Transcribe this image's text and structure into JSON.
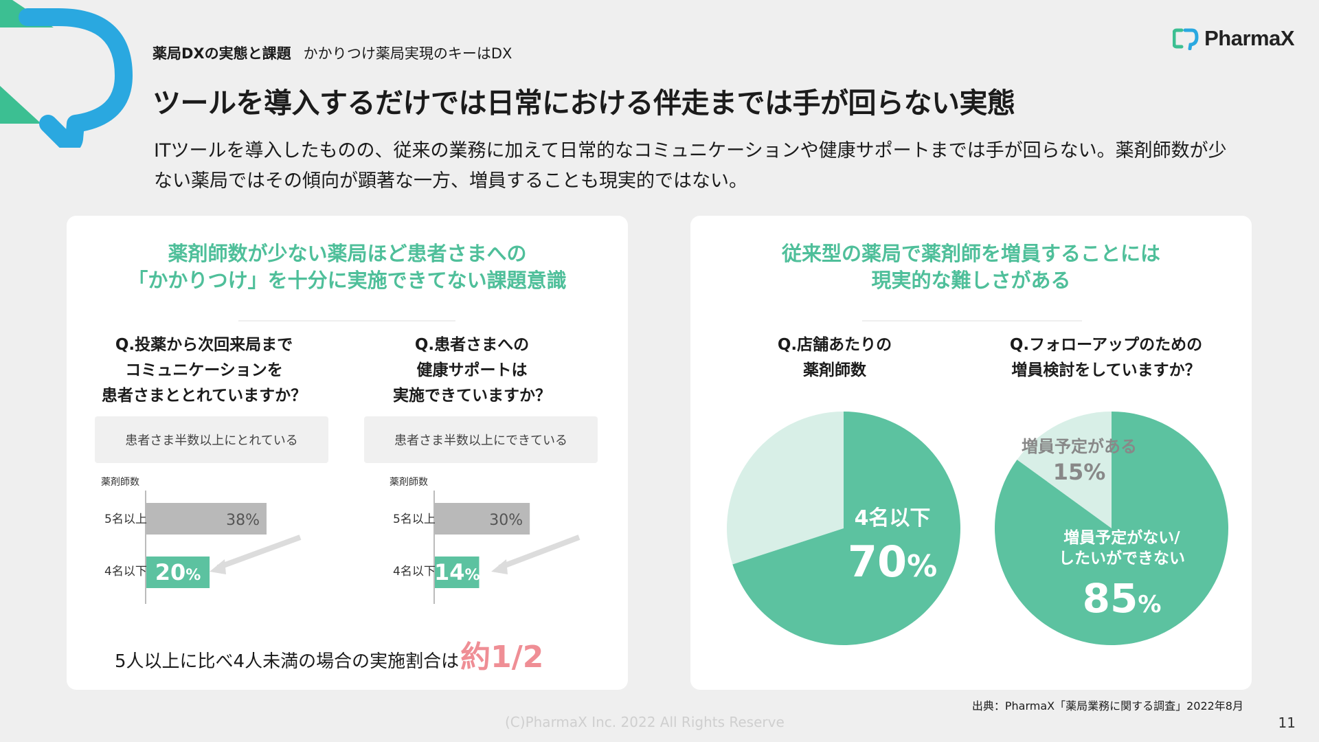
{
  "header": {
    "section": "薬局DXの実態と課題",
    "subtitle": "かかりつけ薬局実現のキーはDX",
    "title": "ツールを導入するだけでは日常における伴走までは手が回らない実態",
    "description": "ITツールを導入したものの、従来の業務に加えて日常的なコミュニケーションや健康サポートまでは手が回らない。薬剤師数が少ない薬局ではその傾向が顕著な一方、増員することも現実的ではない。"
  },
  "logo": {
    "text": "PharmaX"
  },
  "colors": {
    "accent": "#5cc2a0",
    "light_accent": "#d8efe7",
    "gray_bar": "#b9b9b9",
    "highlight": "#ef8e95",
    "brand_blue": "#2aa8e0",
    "brand_green": "#3cbf92"
  },
  "left_panel": {
    "title_line1": "薬剤師数が少ない薬局ほど患者さまへの",
    "title_line2": "「かかりつけ」を十分に実施できてない課題意識",
    "q1": {
      "line1": "Q.投薬から次回来局まで",
      "line2": "コミュニケーションを",
      "line3": "患者さまととれていますか？",
      "answer": "患者さま半数以上にとれている",
      "axis_title": "薬剤師数",
      "rows": [
        {
          "label": "5名以上",
          "value": 38,
          "text": "38%"
        },
        {
          "label": "4名以下",
          "value": 20,
          "text": "20",
          "unit": "%"
        }
      ]
    },
    "q2": {
      "line1": "Q.患者さまへの",
      "line2": "健康サポートは",
      "line3": "実施できていますか？",
      "answer": "患者さま半数以上にできている",
      "axis_title": "薬剤師数",
      "rows": [
        {
          "label": "5名以上",
          "value": 30,
          "text": "30%"
        },
        {
          "label": "4名以下",
          "value": 14,
          "text": "14",
          "unit": "%"
        }
      ]
    },
    "conclusion_text": "5人以上に比べ4人未満の場合の実施割合は",
    "conclusion_highlight": "約1/2"
  },
  "right_panel": {
    "title_line1": "従来型の薬局で薬剤師を増員することには",
    "title_line2": "現実的な難しさがある",
    "q1": {
      "line1": "Q.店舗あたりの",
      "line2": "薬剤師数",
      "pie_value": 70,
      "pie_label": "4名以下",
      "pie_number": "70",
      "pie_unit": "%"
    },
    "q2": {
      "line1": "Q.フォローアップのための",
      "line2": "増員検討をしていますか？",
      "slices": [
        {
          "label": "増員予定がある",
          "value": 15,
          "text": "15%"
        },
        {
          "label_line1": "増員予定がない/",
          "label_line2": "したいができない",
          "value": 85,
          "number": "85",
          "unit": "%"
        }
      ]
    }
  },
  "footer": {
    "source": "出典：PharmaX「薬局業務に関する調査」2022年8月",
    "copyright": "(C)PharmaX Inc. 2022  All Rights Reserve",
    "page_number": "11"
  }
}
